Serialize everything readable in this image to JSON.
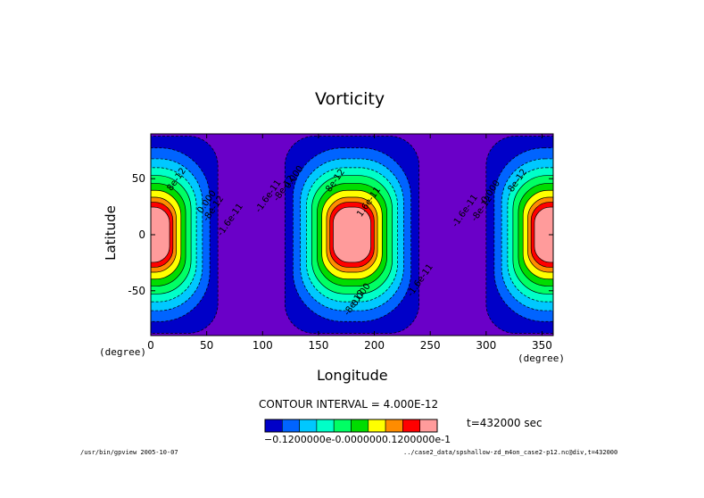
{
  "chart_data": {
    "type": "heatmap",
    "title": "Vorticity",
    "xlabel": "Longitude",
    "ylabel": "Latitude",
    "x_unit": "(degree)",
    "y_unit": "(degree)",
    "xlim": [
      0,
      360
    ],
    "ylim": [
      -90,
      90
    ],
    "x_ticks": [
      0,
      50,
      100,
      150,
      200,
      250,
      300,
      350
    ],
    "y_ticks": [
      50,
      0,
      -50
    ],
    "vortex_centers_lon": [
      0,
      180,
      360
    ],
    "contour_labels": [
      {
        "text": "8e-12",
        "lon": 25,
        "lat": 48
      },
      {
        "text": "0.000",
        "lon": 52,
        "lat": 28
      },
      {
        "text": "-8e-12",
        "lon": 58,
        "lat": 22
      },
      {
        "text": "-1.6e-11",
        "lon": 73,
        "lat": 12
      },
      {
        "text": "-1.6e-11",
        "lon": 107,
        "lat": 33
      },
      {
        "text": "-8e-12",
        "lon": 121,
        "lat": 40
      },
      {
        "text": "0.000",
        "lon": 130,
        "lat": 50
      },
      {
        "text": "8e-12",
        "lon": 167,
        "lat": 47
      },
      {
        "text": "1.6e-11",
        "lon": 197,
        "lat": 28
      },
      {
        "text": "0.000",
        "lon": 190,
        "lat": -55
      },
      {
        "text": "-8e-12",
        "lon": 184,
        "lat": -62
      },
      {
        "text": "-1.6e-11",
        "lon": 243,
        "lat": -42
      },
      {
        "text": "-1.6e-11",
        "lon": 283,
        "lat": 20
      },
      {
        "text": "-8e-12",
        "lon": 298,
        "lat": 22
      },
      {
        "text": "0.000",
        "lon": 306,
        "lat": 37
      },
      {
        "text": "8e-12",
        "lon": 330,
        "lat": 47
      }
    ],
    "contour_interval_text": "CONTOUR INTERVAL = 4.000E-12",
    "time_text": "t=432000 sec",
    "colorbar": {
      "colors": [
        "#0000c8",
        "#0064ff",
        "#00c8ff",
        "#00ffc8",
        "#00ff64",
        "#00dc00",
        "#ffff00",
        "#ff8c00",
        "#ff0000",
        "#ff9b9b"
      ],
      "label_text": "−0.1200000e-0.0000000.1200000e-1"
    },
    "background_color": "#6a00c8",
    "footer_left": "/usr/bin/gpview  2005-10-07",
    "footer_right": "../case2_data/spshallow-zd_m4on_case2-p12.nc@div,t=432000"
  }
}
